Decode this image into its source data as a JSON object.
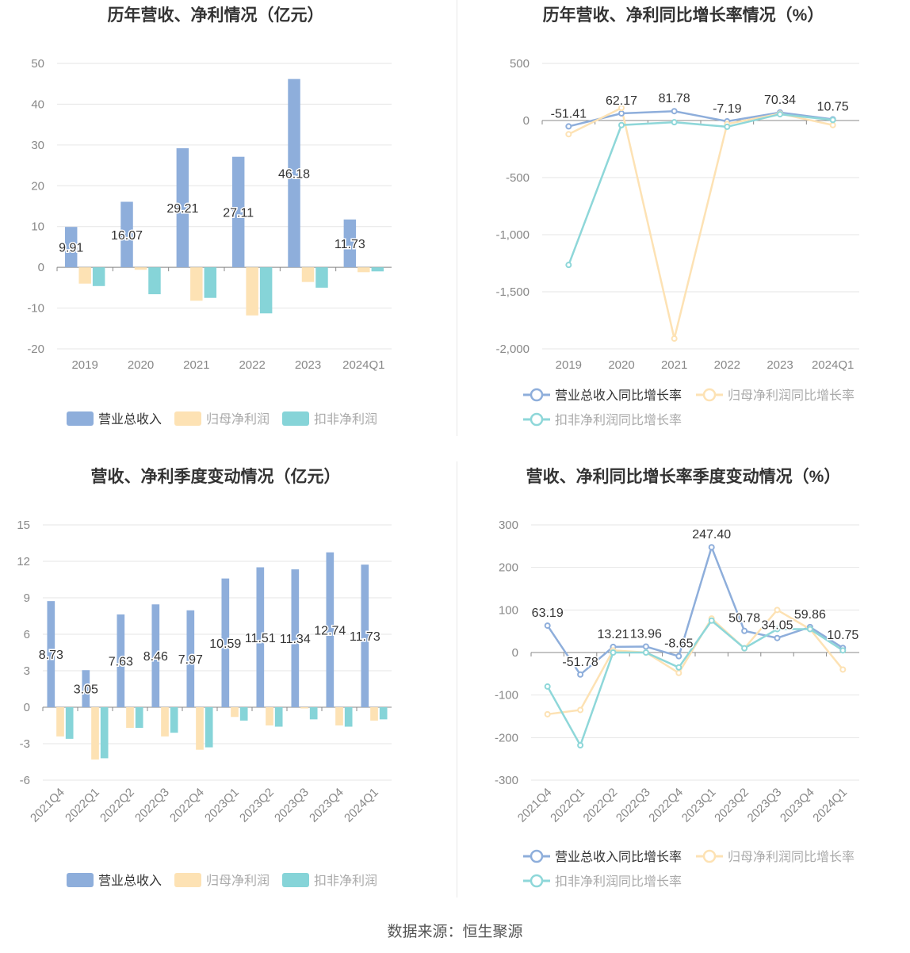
{
  "colors": {
    "revenue": "#8eaedb",
    "net_profit": "#fde2b4",
    "deducted_profit": "#86d4d8",
    "rev_growth": "#8eaedb",
    "np_growth": "#fde2b4",
    "dp_growth": "#8ed7d9",
    "grid": "#e6e6e6",
    "axis_text": "#888888",
    "title": "#333333"
  },
  "footer": "数据来源：恒生聚源",
  "chart_data": [
    {
      "type": "bar",
      "title": "历年营收、净利情况（亿元）",
      "categories": [
        "2019",
        "2020",
        "2021",
        "2022",
        "2023",
        "2024Q1"
      ],
      "ylim": [
        -20,
        50
      ],
      "yticks": [
        "50",
        "40",
        "30",
        "20",
        "10",
        "0",
        "-10",
        "-20"
      ],
      "ytick_values": [
        50,
        40,
        30,
        20,
        10,
        0,
        -10,
        -20
      ],
      "series": [
        {
          "name": "营业总收入",
          "values": [
            9.91,
            16.07,
            29.21,
            27.11,
            46.18,
            11.73
          ],
          "labels": [
            "9.91",
            "16.07",
            "29.21",
            "27.11",
            "46.18",
            "11.73"
          ]
        },
        {
          "name": "归母净利润",
          "values": [
            -4.0,
            -0.6,
            -8.2,
            -11.8,
            -3.6,
            -1.2
          ]
        },
        {
          "name": "扣非净利润",
          "values": [
            -4.6,
            -6.6,
            -7.5,
            -11.3,
            -5.0,
            -1.0
          ]
        }
      ]
    },
    {
      "type": "line",
      "title": "历年营收、净利同比增长率情况（%）",
      "categories": [
        "2019",
        "2020",
        "2021",
        "2022",
        "2023",
        "2024Q1"
      ],
      "ylim": [
        -2000,
        500
      ],
      "yticks": [
        "500",
        "0",
        "-500",
        "-1,000",
        "-1,500",
        "-2,000"
      ],
      "ytick_values": [
        500,
        0,
        -500,
        -1000,
        -1500,
        -2000
      ],
      "series": [
        {
          "name": "营业总收入同比增长率",
          "values": [
            -51.41,
            62.17,
            81.78,
            -7.19,
            70.34,
            10.75
          ],
          "labels": [
            "-51.41",
            "62.17",
            "81.78",
            "-7.19",
            "70.34",
            "10.75"
          ]
        },
        {
          "name": "归母净利润同比增长率",
          "values": [
            -120,
            110,
            -1910,
            -30,
            60,
            -40
          ]
        },
        {
          "name": "扣非净利润同比增长率",
          "values": [
            -1265,
            -40,
            -15,
            -55,
            55,
            5
          ]
        }
      ]
    },
    {
      "type": "bar",
      "title": "营收、净利季度变动情况（亿元）",
      "categories": [
        "2021Q4",
        "2022Q1",
        "2022Q2",
        "2022Q3",
        "2022Q4",
        "2023Q1",
        "2023Q2",
        "2023Q3",
        "2023Q4",
        "2024Q1"
      ],
      "ylim": [
        -6,
        15
      ],
      "yticks": [
        "15",
        "12",
        "9",
        "6",
        "3",
        "0",
        "-3",
        "-6"
      ],
      "ytick_values": [
        15,
        12,
        9,
        6,
        3,
        0,
        -3,
        -6
      ],
      "series": [
        {
          "name": "营业总收入",
          "values": [
            8.73,
            3.05,
            7.63,
            8.46,
            7.97,
            10.59,
            11.51,
            11.34,
            12.74,
            11.73
          ],
          "labels": [
            "8.73",
            "3.05",
            "7.63",
            "8.46",
            "7.97",
            "10.59",
            "11.51",
            "11.34",
            "12.74",
            "11.73"
          ]
        },
        {
          "name": "归母净利润",
          "values": [
            -2.4,
            -4.3,
            -1.7,
            -2.4,
            -3.5,
            -0.8,
            -1.5,
            -0.1,
            -1.5,
            -1.1
          ]
        },
        {
          "name": "扣非净利润",
          "values": [
            -2.6,
            -4.2,
            -1.7,
            -2.1,
            -3.3,
            -1.1,
            -1.6,
            -1.0,
            -1.6,
            -1.0
          ]
        }
      ]
    },
    {
      "type": "line",
      "title": "营收、净利同比增长率季度变动情况（%）",
      "categories": [
        "2021Q4",
        "2022Q1",
        "2022Q2",
        "2022Q3",
        "2022Q4",
        "2023Q1",
        "2023Q2",
        "2023Q3",
        "2023Q4",
        "2024Q1"
      ],
      "ylim": [
        -300,
        300
      ],
      "yticks": [
        "300",
        "200",
        "100",
        "0",
        "-100",
        "-200",
        "-300"
      ],
      "ytick_values": [
        300,
        200,
        100,
        0,
        -100,
        -200,
        -300
      ],
      "series": [
        {
          "name": "营业总收入同比增长率",
          "values": [
            63.19,
            -51.78,
            13.21,
            13.96,
            -8.65,
            247.4,
            50.78,
            34.05,
            59.86,
            10.75
          ],
          "labels": [
            "63.19",
            "-51.78",
            "13.21",
            "13.96",
            "-8.65",
            "247.40",
            "50.78",
            "34.05",
            "59.86",
            "10.75"
          ]
        },
        {
          "name": "归母净利润同比增长率",
          "values": [
            -145,
            -135,
            5,
            0,
            -48,
            80,
            10,
            100,
            55,
            -40
          ]
        },
        {
          "name": "扣非净利润同比增长率",
          "values": [
            -80,
            -218,
            0,
            0,
            -35,
            75,
            10,
            55,
            55,
            5
          ]
        }
      ]
    }
  ]
}
